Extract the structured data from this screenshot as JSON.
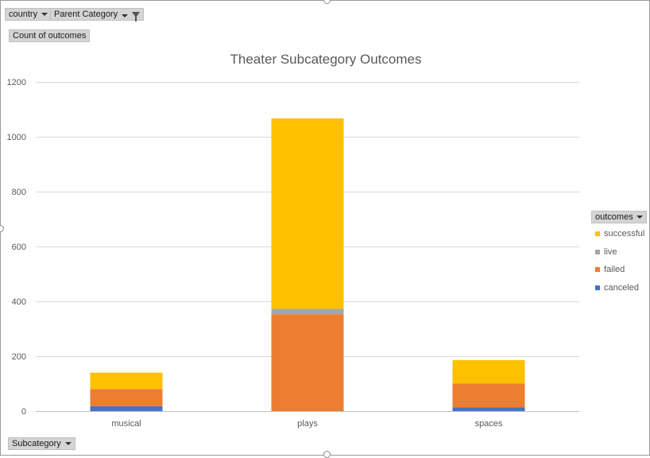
{
  "filters": {
    "country_label": "country",
    "parent_category_label": "Parent Category",
    "value_field_label": "Count of outcomes",
    "axis_field_label": "Subcategory",
    "legend_field_label": "outcomes"
  },
  "chart_data": {
    "type": "bar",
    "stacked": true,
    "title": "Theater Subcategory Outcomes",
    "xlabel": "",
    "ylabel": "",
    "categories": [
      "musical",
      "plays",
      "spaces"
    ],
    "ylim": [
      0,
      1200
    ],
    "yticks": [
      0,
      200,
      400,
      600,
      800,
      1000,
      1200
    ],
    "grid": true,
    "legend_position": "right",
    "series": [
      {
        "name": "canceled",
        "color": "#4472C4",
        "values": [
          18,
          0,
          14
        ]
      },
      {
        "name": "failed",
        "color": "#ED7D31",
        "values": [
          62,
          353,
          86
        ]
      },
      {
        "name": "live",
        "color": "#A5A5A5",
        "values": [
          0,
          20,
          0
        ]
      },
      {
        "name": "successful",
        "color": "#FFC000",
        "values": [
          60,
          694,
          86
        ]
      }
    ],
    "legend_order": [
      "successful",
      "live",
      "failed",
      "canceled"
    ]
  }
}
